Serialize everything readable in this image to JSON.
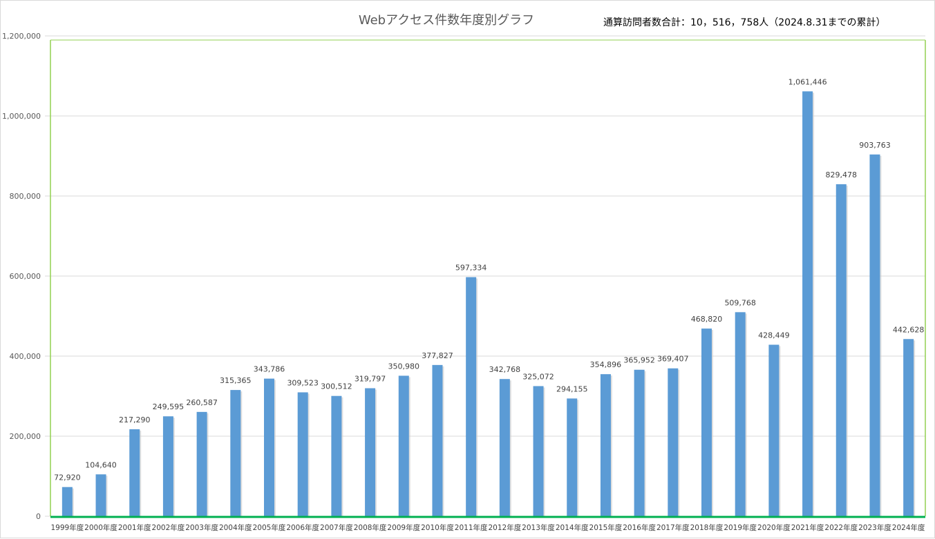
{
  "chart_data": {
    "type": "bar",
    "title": "Webアクセス件数年度別グラフ",
    "note": "通算訪問者数合計：10，516，758人（2024.8.31までの累計）",
    "categories": [
      "1999年度",
      "2000年度",
      "2001年度",
      "2002年度",
      "2003年度",
      "2004年度",
      "2005年度",
      "2006年度",
      "2007年度",
      "2008年度",
      "2009年度",
      "2010年度",
      "2011年度",
      "2012年度",
      "2013年度",
      "2014年度",
      "2015年度",
      "2016年度",
      "2017年度",
      "2018年度",
      "2019年度",
      "2020年度",
      "2021年度",
      "2022年度",
      "2023年度",
      "2024年度"
    ],
    "values": [
      72920,
      104640,
      217290,
      249595,
      260587,
      315365,
      343786,
      309523,
      300512,
      319797,
      350980,
      377827,
      597334,
      342768,
      325072,
      294155,
      354896,
      365952,
      369407,
      468820,
      509768,
      428449,
      1061446,
      829478,
      903763,
      442628
    ],
    "data_labels": [
      "72,920",
      "104,640",
      "217,290",
      "249,595",
      "260,587",
      "315,365",
      "343,786",
      "309,523",
      "300,512",
      "319,797",
      "350,980",
      "377,827",
      "597,334",
      "342,768",
      "325,072",
      "294,155",
      "354,896",
      "365,952",
      "369,407",
      "468,820",
      "509,768",
      "428,449",
      "1,061,446",
      "829,478",
      "903,763",
      "442,628"
    ],
    "yticks": [
      0,
      200000,
      400000,
      600000,
      800000,
      1000000,
      1200000
    ],
    "ytick_labels": [
      "0",
      "200,000",
      "400,000",
      "600,000",
      "800,000",
      "1,000,000",
      "1,200,000"
    ],
    "ylim": [
      0,
      1200000
    ],
    "grid": true,
    "legend": "none",
    "colors": {
      "bar": "#5b9bd5",
      "grid": "#d9d9d9",
      "plot_border": "#92d050",
      "baseline": "#00b050"
    }
  }
}
